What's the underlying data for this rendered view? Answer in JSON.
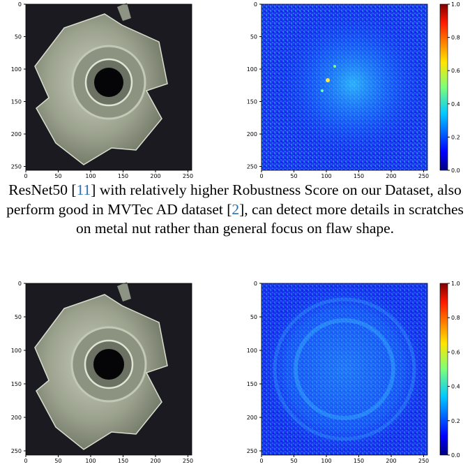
{
  "axis": {
    "ticks": [
      "0",
      "50",
      "100",
      "150",
      "200",
      "250"
    ]
  },
  "colorbar": {
    "ticks": [
      "0.0",
      "0.2",
      "0.4",
      "0.6",
      "0.8",
      "1.0"
    ]
  },
  "caption": {
    "part1": "ResNet50 [",
    "ref1": "11",
    "part2": "] with relatively higher Robustness Score on our Dataset, also perform good in MVTec AD dataset [",
    "ref2": "2",
    "part3": "], can detect more details in scratches on metal nut rather than general focus on flaw shape."
  },
  "colors": {
    "photo_background": "#1a1a20",
    "nut_body": "#a6ad9a",
    "heatmap_base": "#2b3cf0"
  },
  "figures": [
    {
      "left_image": "metal-nut-photo",
      "right_image": "attention-heatmap"
    },
    {
      "left_image": "metal-nut-photo",
      "right_image": "attention-heatmap"
    }
  ]
}
